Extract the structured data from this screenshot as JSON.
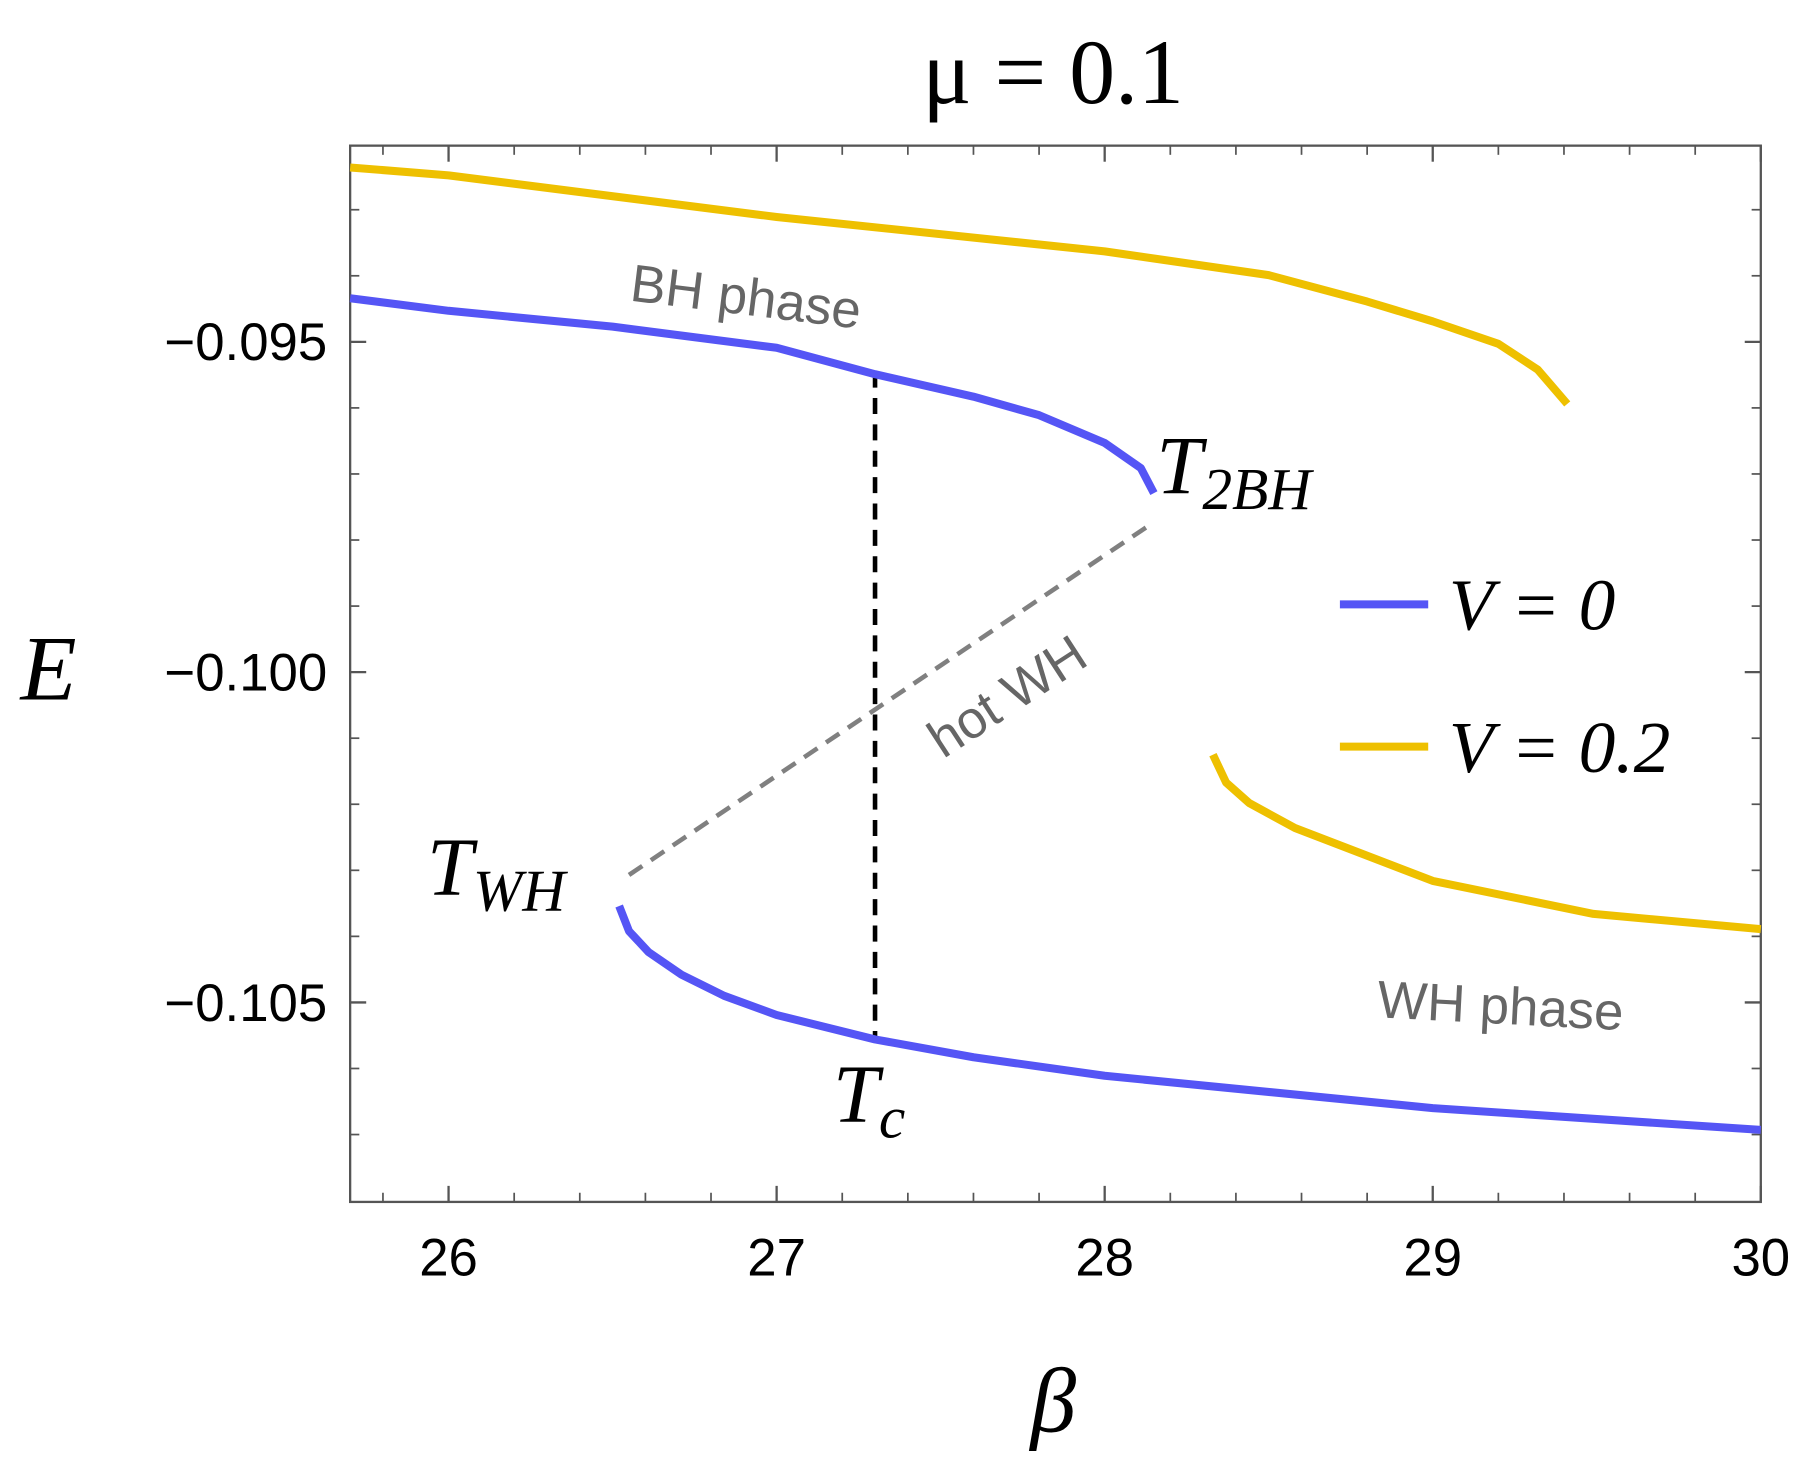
{
  "chart_data": {
    "type": "line",
    "title": "μ = 0.1",
    "x_label": "β",
    "y_label": "E",
    "xlim": [
      25.7,
      30
    ],
    "ylim": [
      -0.10802,
      -0.09203
    ],
    "xticks": [
      26,
      27,
      28,
      29,
      30
    ],
    "xminorticks": [
      25.8,
      26.2,
      26.4,
      26.6,
      26.8,
      27.2,
      27.4,
      27.6,
      27.8,
      28.2,
      28.4,
      28.6,
      28.8,
      29.2,
      29.4,
      29.6,
      29.8
    ],
    "yticks": [
      {
        "value": -0.105,
        "label": "−0.105"
      },
      {
        "value": -0.1,
        "label": "−0.100"
      },
      {
        "value": -0.095,
        "label": "−0.095"
      }
    ],
    "yminorticks": [
      -0.107,
      -0.106,
      -0.104,
      -0.103,
      -0.102,
      -0.101,
      -0.099,
      -0.098,
      -0.097,
      -0.096,
      -0.094,
      -0.093
    ],
    "legend": "right",
    "series": [
      {
        "name": "V = 0",
        "color": "#5555f5",
        "x": [
          25.7,
          26,
          26.5,
          27,
          27.3,
          27.6,
          27.8,
          28,
          28.11,
          28.15,
          null,
          26.52,
          26.55,
          26.61,
          26.71,
          26.84,
          27,
          27.3,
          27.6,
          28,
          29,
          30
        ],
        "values": [
          -0.09434,
          -0.09453,
          -0.09477,
          -0.09509,
          -0.09549,
          -0.09583,
          -0.09611,
          -0.09653,
          -0.09691,
          -0.09729,
          null,
          -0.10354,
          -0.10392,
          -0.10424,
          -0.10458,
          -0.1049,
          -0.10519,
          -0.10556,
          -0.10583,
          -0.10611,
          -0.1066,
          -0.10693
        ]
      },
      {
        "name": "V = 0.2",
        "color": "#eec000",
        "x": [
          25.7,
          26,
          27,
          28,
          28.5,
          28.8,
          29,
          29.2,
          29.32,
          29.41,
          null,
          28.33,
          28.37,
          28.44,
          28.58,
          29,
          29.49,
          30
        ],
        "values": [
          -0.09236,
          -0.09248,
          -0.09311,
          -0.09363,
          -0.09399,
          -0.09439,
          -0.09469,
          -0.09503,
          -0.09542,
          -0.09594,
          null,
          -0.10125,
          -0.10167,
          -0.10198,
          -0.10236,
          -0.10316,
          -0.10366,
          -0.10389
        ]
      }
    ],
    "dashed_lines": [
      {
        "color": "#808080",
        "x": [
          26.55,
          28.15
        ],
        "values": [
          -0.10307,
          -0.09773
        ]
      },
      {
        "color": "#000000",
        "x": [
          27.3,
          27.3
        ],
        "values": [
          -0.09545,
          -0.10555
        ]
      }
    ],
    "annotations": [
      {
        "text": "BH phase"
      },
      {
        "text": "hot WH"
      },
      {
        "text": "WH phase"
      },
      {
        "text": "T",
        "sub": "2BH"
      },
      {
        "text": "T",
        "sub": "WH"
      },
      {
        "text": "T",
        "sub": "c"
      }
    ]
  }
}
